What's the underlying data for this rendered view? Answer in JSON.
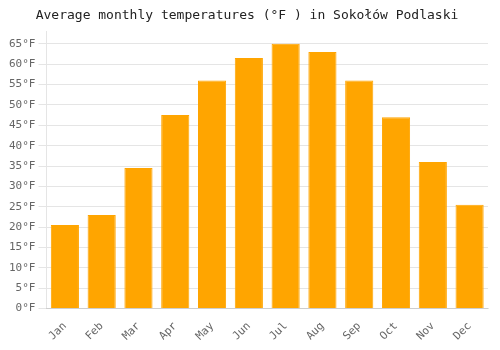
{
  "chart_data": {
    "type": "bar",
    "title": "Average monthly temperatures (°F ) in Sokołów Podlaski",
    "categories": [
      "Jan",
      "Feb",
      "Mar",
      "Apr",
      "May",
      "Jun",
      "Jul",
      "Aug",
      "Sep",
      "Oct",
      "Nov",
      "Dec"
    ],
    "values": [
      20.5,
      23.0,
      34.5,
      47.5,
      56.0,
      61.5,
      65.0,
      63.0,
      56.0,
      47.0,
      36.0,
      25.5
    ],
    "color": "#FFA500",
    "ylim": [
      0,
      68
    ],
    "yticks": [
      {
        "value": 0,
        "label": "0°F"
      },
      {
        "value": 5,
        "label": "5°F"
      },
      {
        "value": 10,
        "label": "10°F"
      },
      {
        "value": 15,
        "label": "15°F"
      },
      {
        "value": 20,
        "label": "20°F"
      },
      {
        "value": 25,
        "label": "25°F"
      },
      {
        "value": 30,
        "label": "30°F"
      },
      {
        "value": 35,
        "label": "35°F"
      },
      {
        "value": 40,
        "label": "40°F"
      },
      {
        "value": 45,
        "label": "45°F"
      },
      {
        "value": 50,
        "label": "50°F"
      },
      {
        "value": 55,
        "label": "55°F"
      },
      {
        "value": 60,
        "label": "60°F"
      },
      {
        "value": 65,
        "label": "65°F"
      }
    ],
    "grid": true
  }
}
